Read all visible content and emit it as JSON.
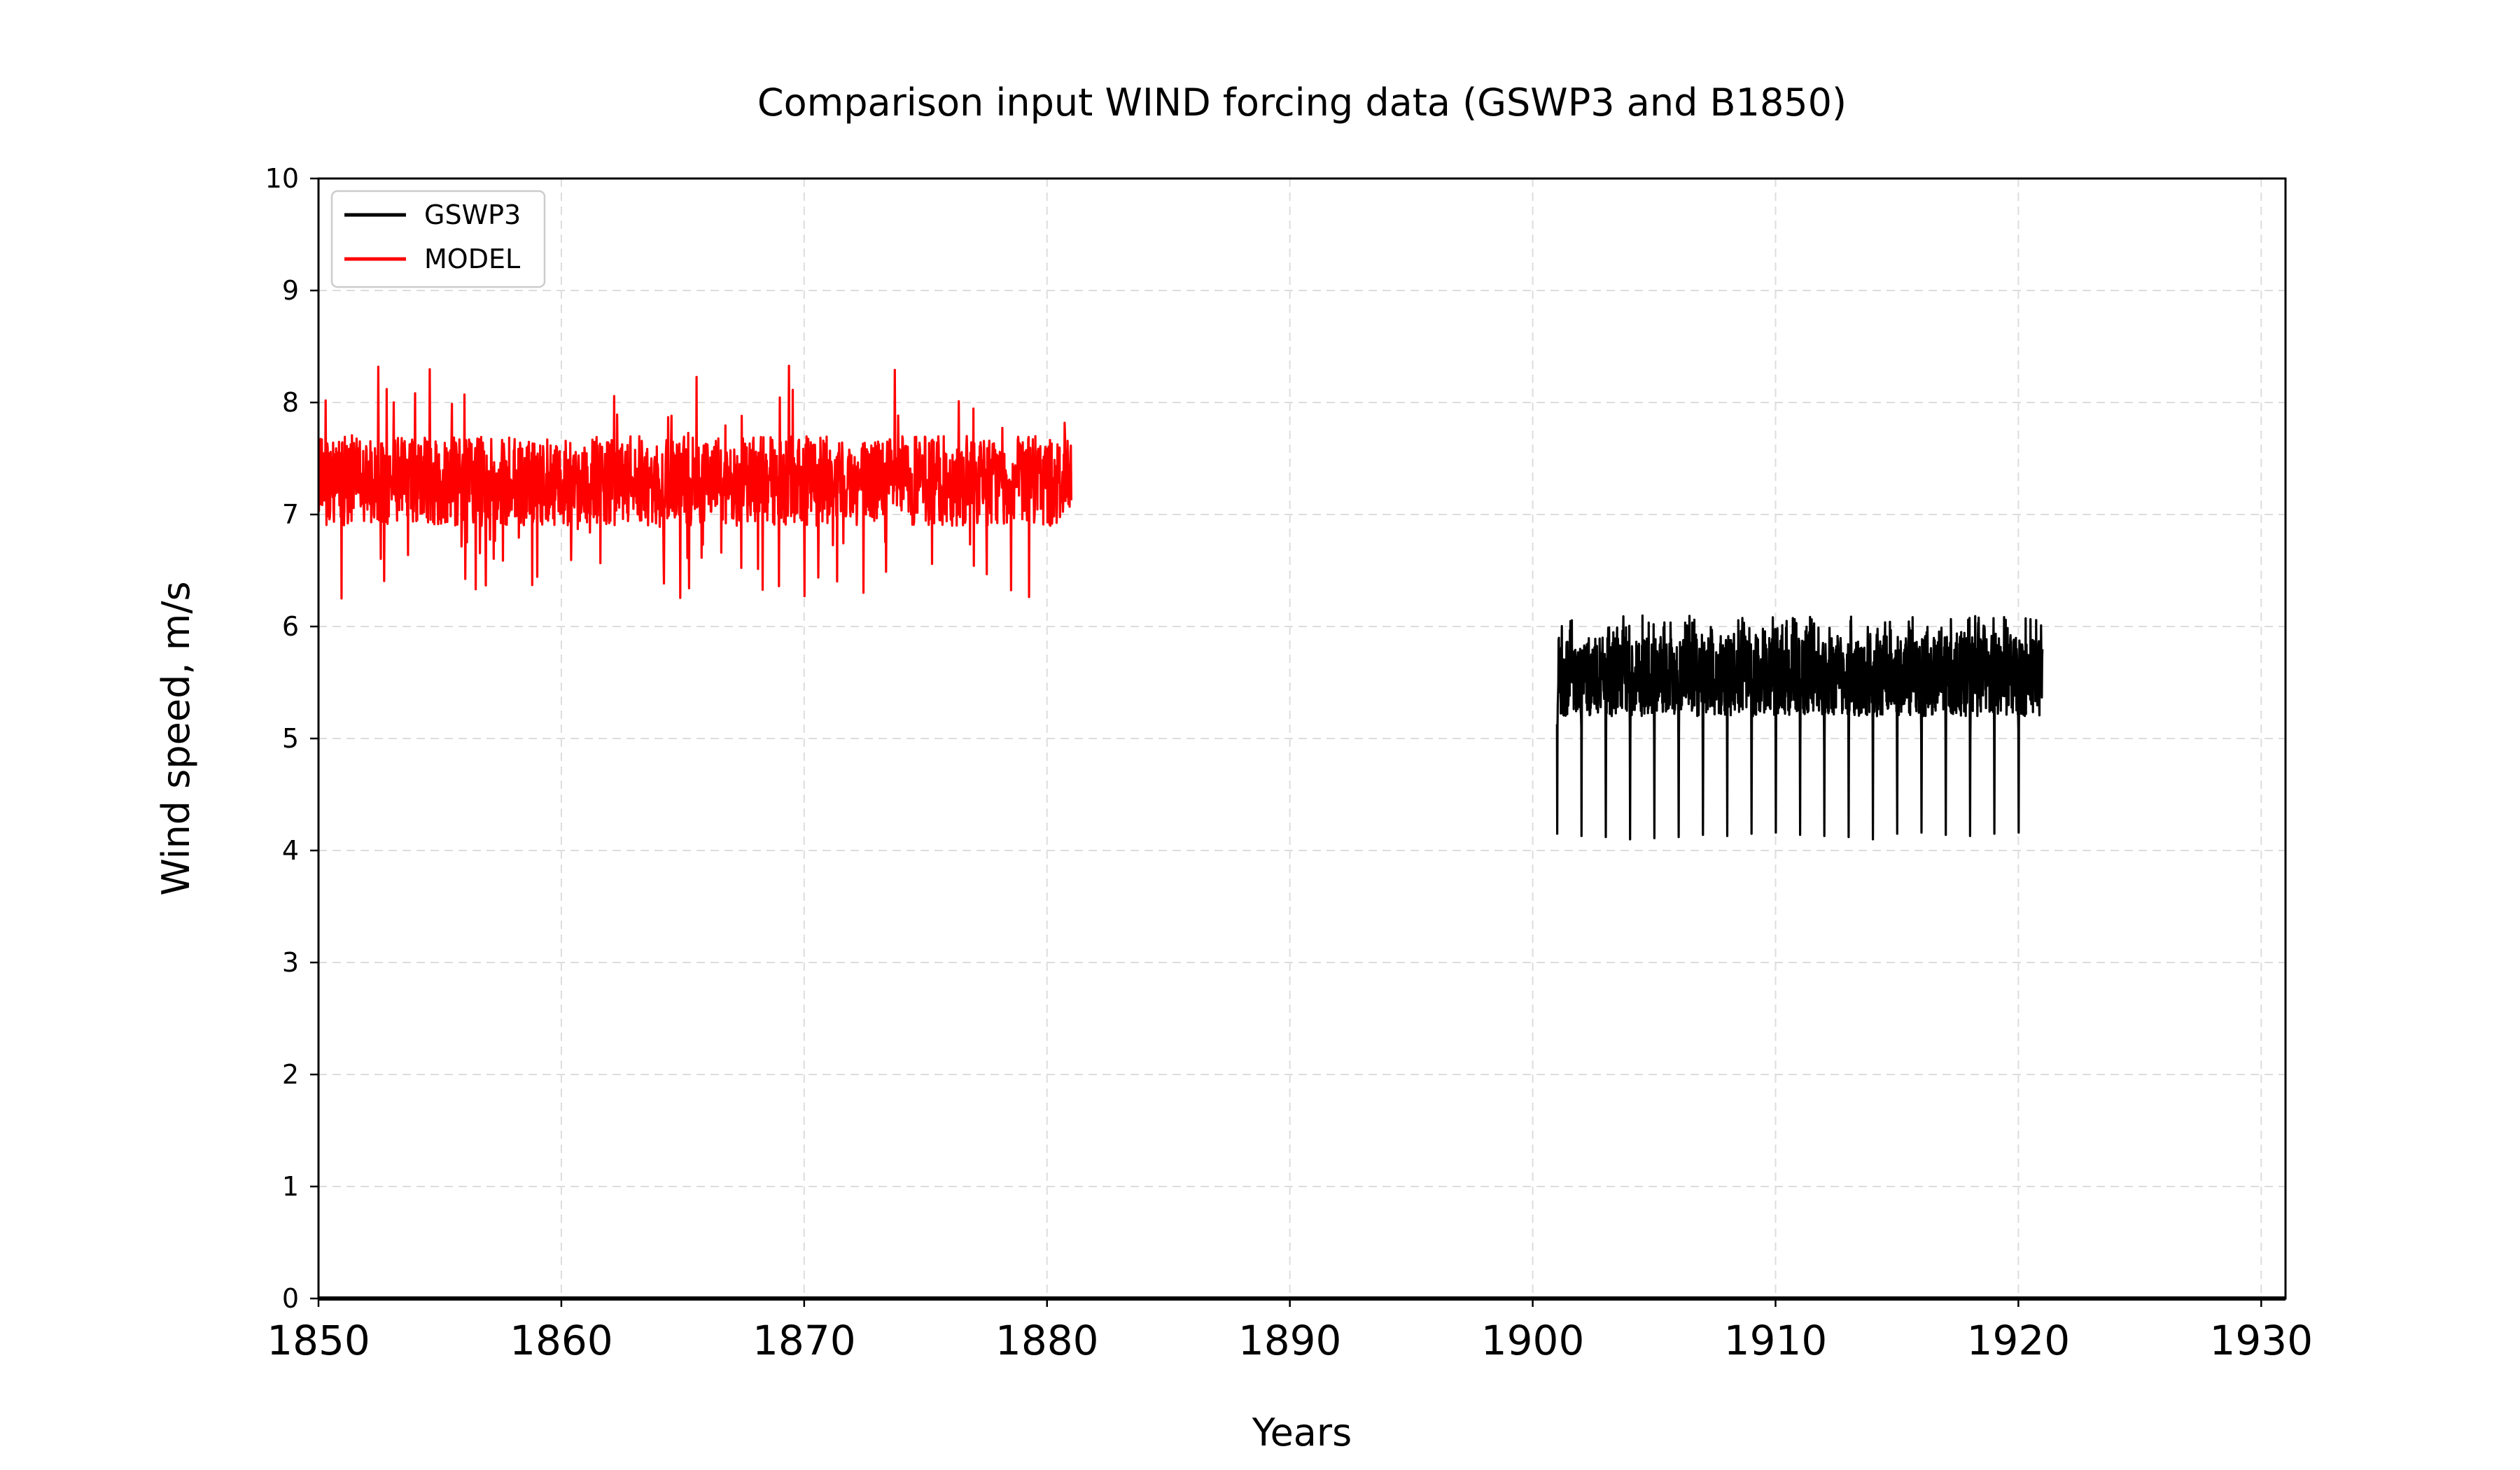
{
  "chart_data": {
    "type": "line",
    "title": "Comparison input WIND forcing data (GSWP3 and B1850)",
    "xlabel": "Years",
    "ylabel": "Wind speed, m/s",
    "xlim": [
      1850,
      1931
    ],
    "ylim": [
      0,
      10
    ],
    "xticks": [
      "1850",
      "1860",
      "1870",
      "1880",
      "1890",
      "1900",
      "1910",
      "1920",
      "1930"
    ],
    "yticks": [
      "0",
      "1",
      "2",
      "3",
      "4",
      "5",
      "6",
      "7",
      "8",
      "9",
      "10"
    ],
    "grid": true,
    "legend_position": "top-left",
    "series": [
      {
        "name": "GSWP3",
        "color": "#000000",
        "x_range": [
          1901,
          1921
        ],
        "typical_range": [
          5.2,
          5.9
        ],
        "peaks": 6.1,
        "annual_minima": [
          4.15,
          4.13,
          4.12,
          4.1,
          4.11,
          4.12,
          4.14,
          4.13,
          4.15,
          4.16,
          4.14,
          4.13,
          4.12,
          4.1,
          4.15,
          4.16,
          4.14,
          4.13,
          4.15,
          4.16
        ],
        "values_note": ""
      },
      {
        "name": "MODEL",
        "color": "#ff0000",
        "x_range": [
          1850,
          1881
        ],
        "typical_range": [
          6.9,
          7.7
        ],
        "peaks": 8.35,
        "troughs": 6.25
      }
    ],
    "zero_line_color": "#000000"
  }
}
